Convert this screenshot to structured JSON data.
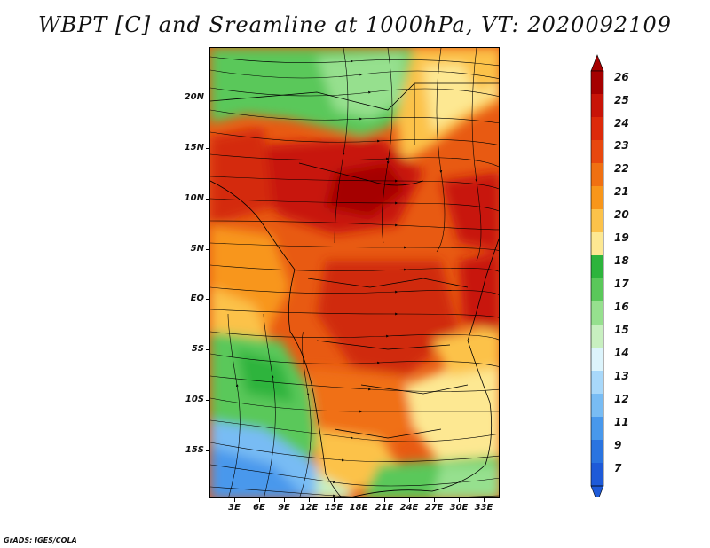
{
  "title": "WBPT [C] and Sreamline at 1000hPa, VT: 2020092109",
  "footer": "GrADS: IGES/COLA",
  "map": {
    "lat_labels": [
      "20N",
      "15N",
      "10N",
      "5N",
      "EQ",
      "5S",
      "10S",
      "15S"
    ],
    "lon_labels": [
      "3E",
      "6E",
      "9E",
      "12E",
      "15E",
      "18E",
      "21E",
      "24E",
      "27E",
      "30E",
      "33E"
    ]
  },
  "colorbar": {
    "labels": [
      "26",
      "25",
      "24",
      "23",
      "22",
      "21",
      "20",
      "19",
      "18",
      "17",
      "16",
      "15",
      "14",
      "13",
      "12",
      "11",
      "9",
      "7"
    ],
    "colors": [
      "#a50000",
      "#c81408",
      "#dc2a0a",
      "#e8480e",
      "#f07012",
      "#f8961a",
      "#fcc24a",
      "#fde892",
      "#2db43c",
      "#5ac85a",
      "#96e08e",
      "#c8f0c0",
      "#dcf4fc",
      "#a8d8fa",
      "#78bcf4",
      "#4898ec",
      "#2a74e0",
      "#1e5ad8"
    ],
    "top_color": "#a50000",
    "bottom_color": "#1e5ad8"
  }
}
